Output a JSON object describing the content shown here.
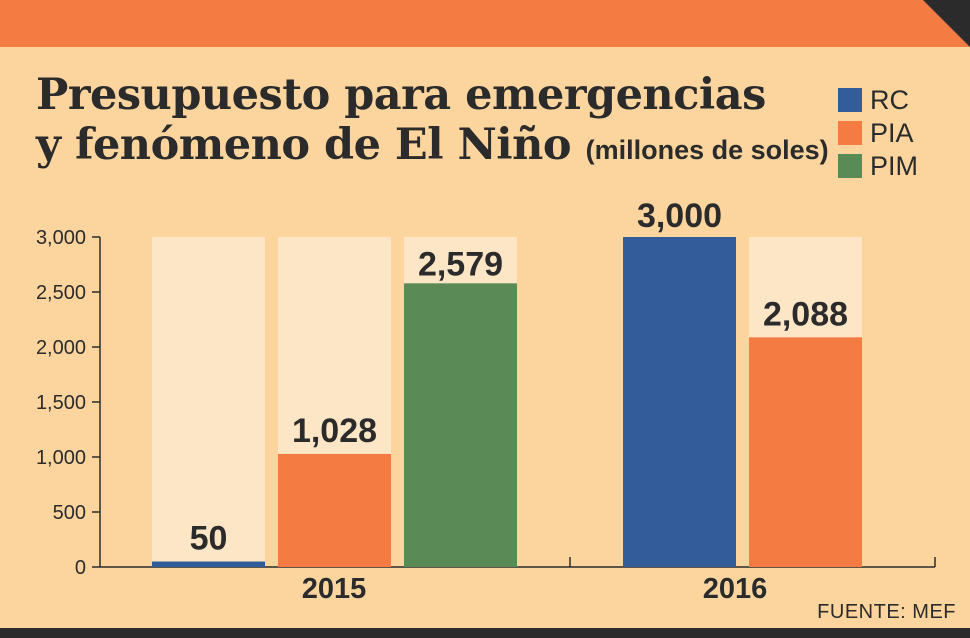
{
  "title": {
    "line1": "Presupuesto para emergencias",
    "line2": "y fenómeno de El Niño",
    "subtitle": "(millones de soles)"
  },
  "source": {
    "label": "FUENTE:",
    "value": "MEF"
  },
  "colors": {
    "background": "#fcd59e",
    "header_band": "#f47c42",
    "bar_track": "#fde6c6",
    "RC": "#335c9a",
    "PIA": "#f47c42",
    "PIM": "#5a8b56",
    "text": "#2b2b2b"
  },
  "chart_data": {
    "type": "bar",
    "title": "Presupuesto para emergencias y fenómeno de El Niño (millones de soles)",
    "xlabel": "",
    "ylabel": "",
    "ylim": [
      0,
      3000
    ],
    "yticks": [
      0,
      500,
      1000,
      1500,
      2000,
      2500,
      3000
    ],
    "ytick_labels": [
      "0",
      "500",
      "1,000",
      "1,500",
      "2,000",
      "2,500",
      "3,000"
    ],
    "categories": [
      "2015",
      "2016"
    ],
    "legend": [
      "RC",
      "PIA",
      "PIM"
    ],
    "legend_position": "top-right",
    "grid": false,
    "series": [
      {
        "name": "RC",
        "values": [
          50,
          3000
        ],
        "labels": [
          "50",
          "3,000"
        ]
      },
      {
        "name": "PIA",
        "values": [
          1028,
          2088
        ],
        "labels": [
          "1,028",
          "2,088"
        ]
      },
      {
        "name": "PIM",
        "values": [
          2579,
          null
        ],
        "labels": [
          "2,579",
          ""
        ]
      }
    ]
  }
}
